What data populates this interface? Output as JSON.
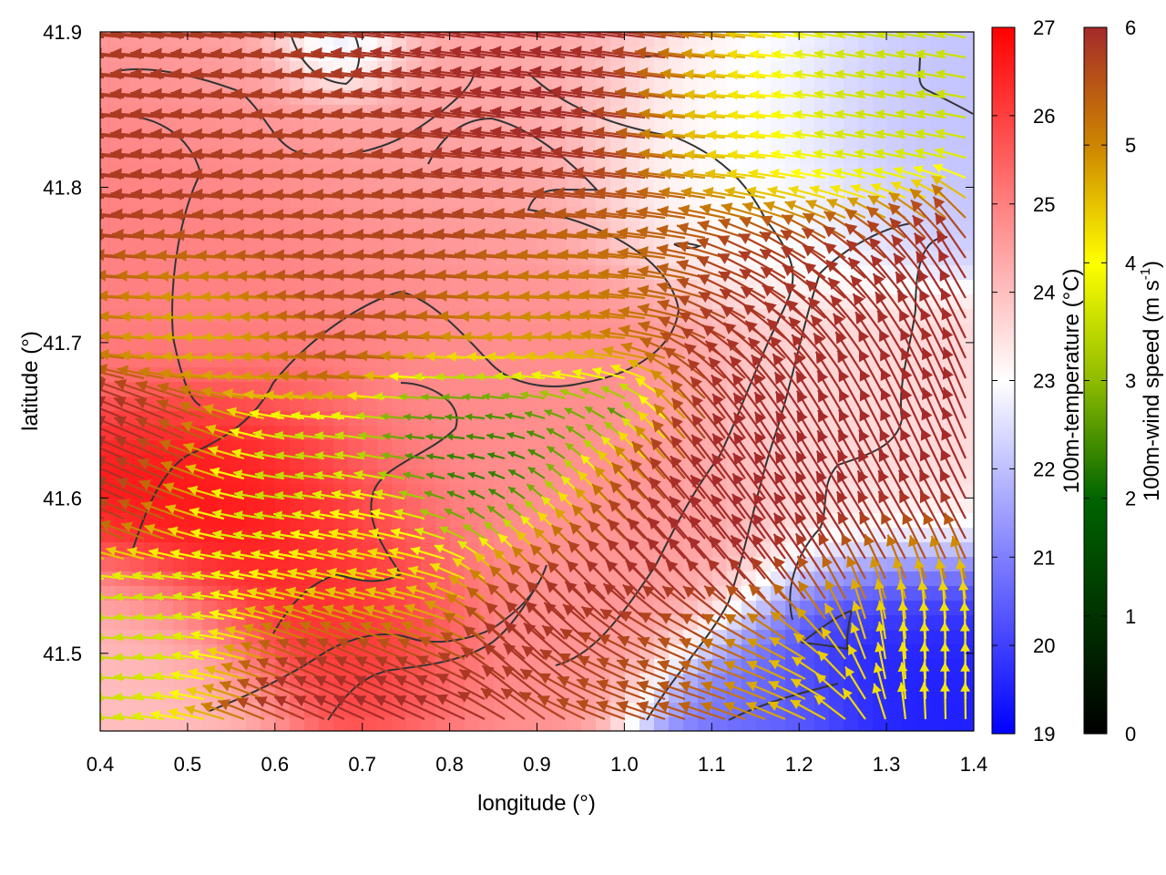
{
  "chart_data": {
    "type": "heatmap",
    "title": "",
    "xlabel": "longitude (°)",
    "ylabel": "latitude (°)",
    "xlim": [
      0.4,
      1.4
    ],
    "ylim": [
      41.45,
      41.9
    ],
    "x_ticks": [
      "0.4",
      "0.5",
      "0.6",
      "0.7",
      "0.8",
      "0.9",
      "1.0",
      "1.1",
      "1.2",
      "1.3",
      "1.4"
    ],
    "y_ticks": [
      "41.5",
      "41.6",
      "41.7",
      "41.8",
      "41.9"
    ],
    "x_tick_values": [
      0.4,
      0.5,
      0.6,
      0.7,
      0.8,
      0.9,
      1.0,
      1.1,
      1.2,
      1.3,
      1.4
    ],
    "y_tick_values": [
      41.5,
      41.6,
      41.7,
      41.8,
      41.9
    ],
    "temperature_colorbar": {
      "label": "100m-temperature (°C)",
      "range": [
        19,
        27
      ],
      "ticks": [
        "19",
        "20",
        "21",
        "22",
        "23",
        "24",
        "25",
        "26",
        "27"
      ],
      "tick_values": [
        19,
        20,
        21,
        22,
        23,
        24,
        25,
        26,
        27
      ],
      "colors": [
        "#0000ff",
        "#ffffff",
        "#ff0000"
      ]
    },
    "wind_colorbar": {
      "label_main": "100m-wind speed (m s",
      "label_sup": "-1",
      "label_end": ")",
      "range": [
        0,
        6
      ],
      "ticks": [
        "0",
        "1",
        "2",
        "3",
        "4",
        "5",
        "6"
      ],
      "tick_values": [
        0,
        1,
        2,
        3,
        4,
        5,
        6
      ],
      "colors": [
        "#000000",
        "#006400",
        "#8fbc00",
        "#ffff00",
        "#cd8500",
        "#a52a2a"
      ]
    },
    "temperature_field": [
      {
        "lon": 0.56,
        "lat": 41.59,
        "t": 26.8,
        "r": 0.1
      },
      {
        "lon": 0.68,
        "lat": 41.55,
        "t": 26.3,
        "r": 0.08
      },
      {
        "lon": 0.55,
        "lat": 41.76,
        "t": 25.0,
        "r": 0.13
      },
      {
        "lon": 0.85,
        "lat": 41.62,
        "t": 24.8,
        "r": 0.14
      },
      {
        "lon": 0.75,
        "lat": 41.86,
        "t": 24.4,
        "r": 0.15
      },
      {
        "lon": 1.02,
        "lat": 41.57,
        "t": 24.6,
        "r": 0.1
      },
      {
        "lon": 1.15,
        "lat": 41.83,
        "t": 23.0,
        "r": 0.1
      },
      {
        "lon": 1.32,
        "lat": 41.84,
        "t": 22.0,
        "r": 0.08
      },
      {
        "lon": 0.68,
        "lat": 41.89,
        "t": 21.5,
        "r": 0.04
      },
      {
        "lon": 1.28,
        "lat": 41.5,
        "t": 19.5,
        "r": 0.09
      },
      {
        "lon": 1.16,
        "lat": 41.47,
        "t": 20.8,
        "r": 0.06
      },
      {
        "lon": 1.25,
        "lat": 41.62,
        "t": 23.6,
        "r": 0.1
      },
      {
        "lon": 0.45,
        "lat": 41.5,
        "t": 24.0,
        "r": 0.08
      }
    ],
    "wind_field": [
      {
        "lon": 0.55,
        "lat": 41.8,
        "u": -5.8,
        "v": 0.5,
        "speed": 5.8,
        "r": 0.12
      },
      {
        "lon": 0.55,
        "lat": 41.72,
        "u": -4.0,
        "v": 0.0,
        "speed": 4.0,
        "r": 0.06
      },
      {
        "lon": 0.72,
        "lat": 41.78,
        "u": -5.5,
        "v": 0.3,
        "speed": 5.5,
        "r": 0.1
      },
      {
        "lon": 0.9,
        "lat": 41.82,
        "u": -6.0,
        "v": 0.8,
        "speed": 6.0,
        "r": 0.12
      },
      {
        "lon": 0.95,
        "lat": 41.72,
        "u": -4.5,
        "v": 0.0,
        "speed": 4.5,
        "r": 0.08
      },
      {
        "lon": 0.9,
        "lat": 41.62,
        "u": -0.5,
        "v": 0.3,
        "speed": 0.6,
        "r": 0.07
      },
      {
        "lon": 0.85,
        "lat": 41.64,
        "u": -2.0,
        "v": 0.0,
        "speed": 2.0,
        "r": 0.05
      },
      {
        "lon": 0.6,
        "lat": 41.6,
        "u": -2.5,
        "v": 0.2,
        "speed": 2.5,
        "r": 0.06
      },
      {
        "lon": 0.68,
        "lat": 41.56,
        "u": -4.0,
        "v": 0.8,
        "speed": 4.0,
        "r": 0.07
      },
      {
        "lon": 0.48,
        "lat": 41.62,
        "u": -5.8,
        "v": 2.5,
        "speed": 6.0,
        "r": 0.06
      },
      {
        "lon": 0.5,
        "lat": 41.5,
        "u": -3.0,
        "v": 0.2,
        "speed": 3.0,
        "r": 0.07
      },
      {
        "lon": 0.65,
        "lat": 41.47,
        "u": -5.5,
        "v": 2.5,
        "speed": 6.0,
        "r": 0.07
      },
      {
        "lon": 1.05,
        "lat": 41.58,
        "u": -4.0,
        "v": 4.0,
        "speed": 6.0,
        "r": 0.1
      },
      {
        "lon": 1.2,
        "lat": 41.6,
        "u": -3.0,
        "v": 5.0,
        "speed": 6.0,
        "r": 0.1
      },
      {
        "lon": 1.3,
        "lat": 41.68,
        "u": -2.0,
        "v": 5.5,
        "speed": 6.0,
        "r": 0.1
      },
      {
        "lon": 1.2,
        "lat": 41.72,
        "u": -5.0,
        "v": 2.0,
        "speed": 5.8,
        "r": 0.09
      },
      {
        "lon": 1.1,
        "lat": 41.48,
        "u": -5.0,
        "v": 1.5,
        "speed": 5.5,
        "r": 0.06
      },
      {
        "lon": 1.2,
        "lat": 41.48,
        "u": -3.5,
        "v": 1.5,
        "speed": 4.0,
        "r": 0.05
      },
      {
        "lon": 1.33,
        "lat": 41.5,
        "u": 0.0,
        "v": 3.5,
        "speed": 3.8,
        "r": 0.06
      },
      {
        "lon": 1.25,
        "lat": 41.83,
        "u": -3.0,
        "v": 0.5,
        "speed": 3.0,
        "r": 0.07
      },
      {
        "lon": 1.15,
        "lat": 41.83,
        "u": -4.0,
        "v": 0.2,
        "speed": 4.0,
        "r": 0.06
      },
      {
        "lon": 1.0,
        "lat": 41.65,
        "u": -1.0,
        "v": 0.5,
        "speed": 1.2,
        "r": 0.04
      },
      {
        "lon": 1.02,
        "lat": 41.75,
        "u": -5.0,
        "v": 0.5,
        "speed": 5.0,
        "r": 0.06
      }
    ]
  }
}
